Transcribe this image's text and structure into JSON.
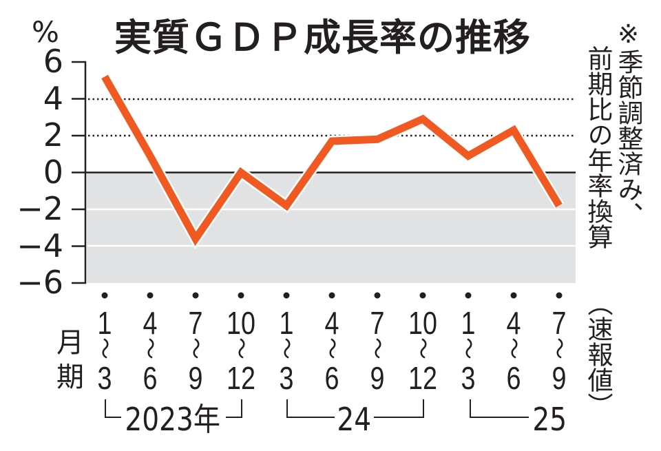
{
  "title": "実質ＧＤＰ成長率の推移",
  "unit_label": "%",
  "note_line1": "※季節調整済み、",
  "note_line2": "前期比の年率換算",
  "note_line3": "（速報値）",
  "x_side_label_top": "月",
  "x_side_label_bottom": "期",
  "colors": {
    "line": "#f05a22",
    "negative_band": "#e1e2e4",
    "axis": "#231f20",
    "text": "#231f20"
  },
  "y_axis": {
    "ticks": [
      6,
      4,
      2,
      0,
      -2,
      -4,
      -6
    ],
    "tick_labels": [
      "6",
      "4",
      "2",
      "0",
      "−2",
      "−4",
      "−6"
    ]
  },
  "x_axis": {
    "quarters": [
      {
        "start": "1",
        "wave": "〜",
        "end": "3"
      },
      {
        "start": "4",
        "wave": "〜",
        "end": "6"
      },
      {
        "start": "7",
        "wave": "〜",
        "end": "9"
      },
      {
        "start": "10",
        "wave": "〜",
        "end": "12"
      },
      {
        "start": "1",
        "wave": "〜",
        "end": "3"
      },
      {
        "start": "4",
        "wave": "〜",
        "end": "6"
      },
      {
        "start": "7",
        "wave": "〜",
        "end": "9"
      },
      {
        "start": "10",
        "wave": "〜",
        "end": "12"
      },
      {
        "start": "1",
        "wave": "〜",
        "end": "3"
      },
      {
        "start": "4",
        "wave": "〜",
        "end": "6"
      },
      {
        "start": "7",
        "wave": "〜",
        "end": "9"
      }
    ],
    "years": [
      "2023年",
      "24",
      "25"
    ]
  },
  "chart_data": {
    "type": "line",
    "title": "実質ＧＤＰ成長率の推移",
    "subtitle": "※季節調整済み、前期比の年率換算（速報値）",
    "xlabel": "月期",
    "ylabel": "%",
    "ylim": [
      -6,
      6
    ],
    "grid": {
      "dotted_at": [
        4,
        2
      ],
      "solid_zero": true,
      "white_lines_at": [
        -2,
        -4
      ],
      "negative_region_shaded": true
    },
    "categories": [
      "2023 1-3",
      "2023 4-6",
      "2023 7-9",
      "2023 10-12",
      "2024 1-3",
      "2024 4-6",
      "2024 7-9",
      "2024 10-12",
      "2025 1-3",
      "2025 4-6",
      "2025 7-9"
    ],
    "series": [
      {
        "name": "実質GDP成長率",
        "values": [
          5.2,
          0.9,
          -3.6,
          0.0,
          -1.8,
          1.7,
          1.8,
          2.9,
          0.9,
          2.3,
          -1.8
        ]
      }
    ]
  }
}
